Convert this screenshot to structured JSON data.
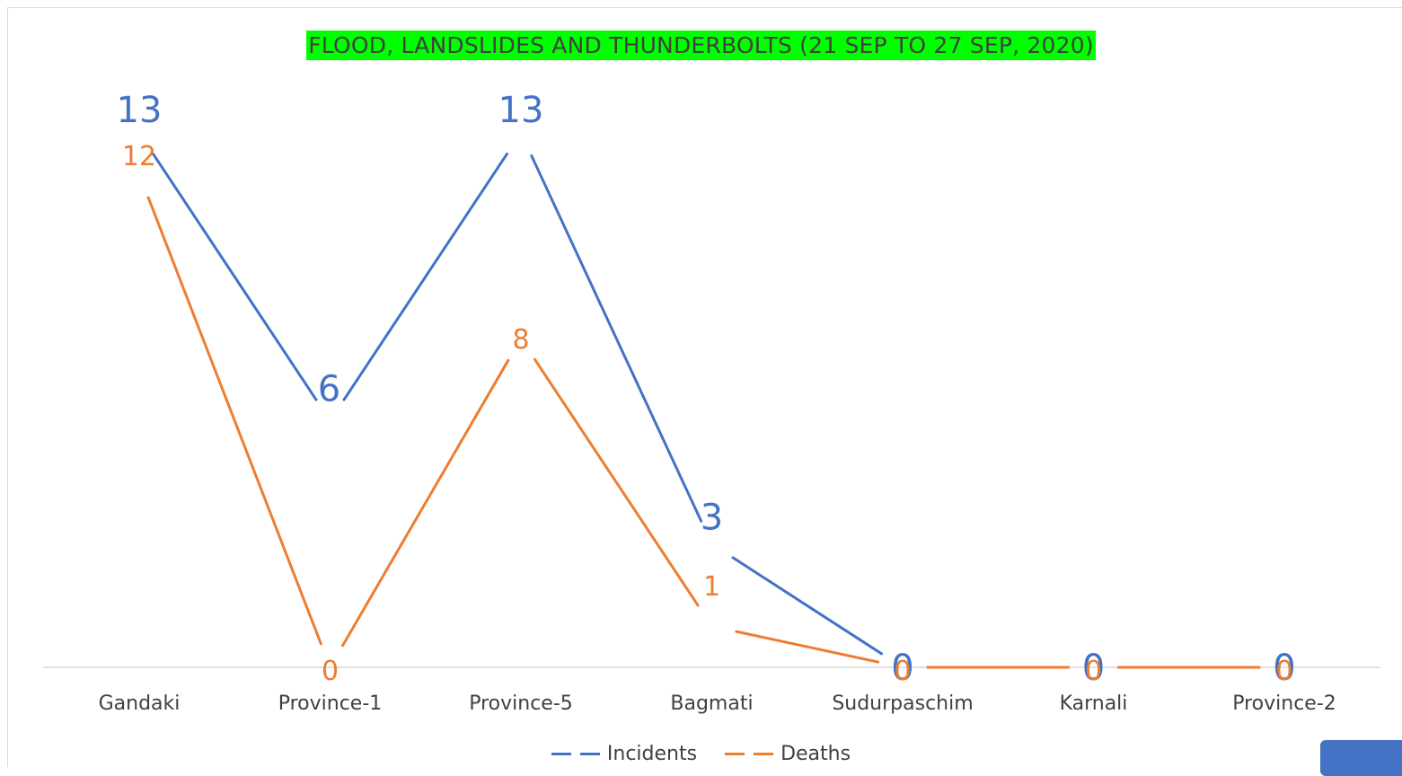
{
  "chart_data": {
    "type": "line",
    "title": "FLOOD, LANDSLIDES AND THUNDERBOLTS (21 SEP TO 27 SEP, 2020)",
    "categories": [
      "Gandaki",
      "Province-1",
      "Province-5",
      "Bagmati",
      "Sudurpaschim",
      "Karnali",
      "Province-2"
    ],
    "series": [
      {
        "name": "Incidents",
        "values": [
          13,
          6,
          13,
          3,
          0,
          0,
          0
        ],
        "color": "#4472c4"
      },
      {
        "name": "Deaths",
        "values": [
          12,
          0,
          8,
          1,
          0,
          0,
          0
        ],
        "color": "#ed7d31"
      }
    ],
    "ylim": [
      0,
      13
    ],
    "grid": false,
    "legend_position": "bottom",
    "data_labels": true
  }
}
